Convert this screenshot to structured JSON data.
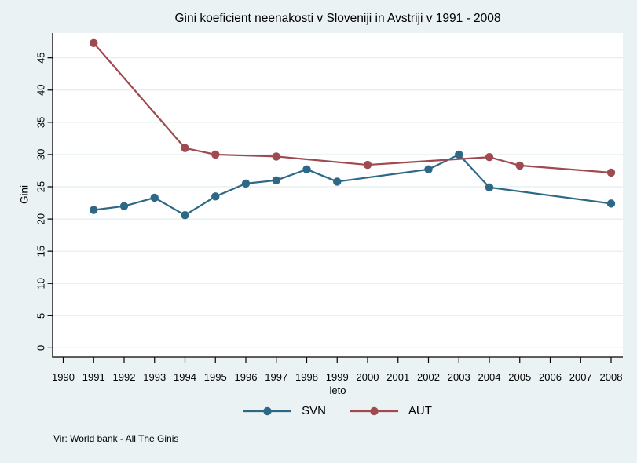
{
  "chart_data": {
    "type": "line",
    "title": "Gini koeficient neenakosti v Sloveniji in Avstriji v 1991 - 2008",
    "xlabel": "leto",
    "ylabel": "Gini",
    "note": "Vir: World bank - All The Ginis",
    "x_ticks": [
      1990,
      1991,
      1992,
      1993,
      1994,
      1995,
      1996,
      1997,
      1998,
      1999,
      2000,
      2001,
      2002,
      2003,
      2004,
      2005,
      2006,
      2007,
      2008
    ],
    "y_ticks": [
      0,
      5,
      10,
      15,
      20,
      25,
      30,
      35,
      40,
      45
    ],
    "xlim": [
      1989.65,
      2008.45
    ],
    "ylim": [
      0,
      48.8
    ],
    "grid": true,
    "legend_position": "bottom-center",
    "colors": {
      "background": "#eaf2f3",
      "plot": "#ffffff",
      "grid": "#e2eeed",
      "axis": "#000000"
    },
    "series": [
      {
        "name": "SVN",
        "color": "#2d6987",
        "points": [
          [
            1991,
            21.4
          ],
          [
            1992,
            22.0
          ],
          [
            1993,
            23.3
          ],
          [
            1994,
            20.6
          ],
          [
            1995,
            23.5
          ],
          [
            1996,
            25.5
          ],
          [
            1997,
            26.0
          ],
          [
            1998,
            27.7
          ],
          [
            1999,
            25.8
          ],
          [
            2002,
            27.7
          ],
          [
            2003,
            30.0
          ],
          [
            2004,
            24.9
          ],
          [
            2008,
            22.4
          ]
        ]
      },
      {
        "name": "AUT",
        "color": "#9e4a50",
        "points": [
          [
            1991,
            47.3
          ],
          [
            1994,
            31.0
          ],
          [
            1995,
            30.0
          ],
          [
            1997,
            29.7
          ],
          [
            2000,
            28.4
          ],
          [
            2004,
            29.6
          ],
          [
            2005,
            28.3
          ],
          [
            2008,
            27.2
          ]
        ]
      }
    ]
  }
}
